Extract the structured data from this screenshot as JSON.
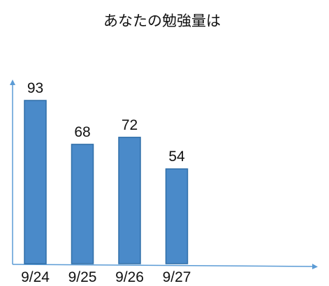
{
  "chart_data": {
    "type": "bar",
    "title": "あなたの勉強量は",
    "categories": [
      "9/24",
      "9/25",
      "9/26",
      "9/27"
    ],
    "values": [
      93,
      68,
      72,
      54
    ],
    "xlabel": "",
    "ylabel": "",
    "ylim": [
      0,
      93
    ],
    "grid": false,
    "legend": "none",
    "colors": {
      "bar_fill": "#4a8ac9",
      "bar_stroke": "#2f6ea8",
      "axis": "#5b9bd5"
    }
  }
}
